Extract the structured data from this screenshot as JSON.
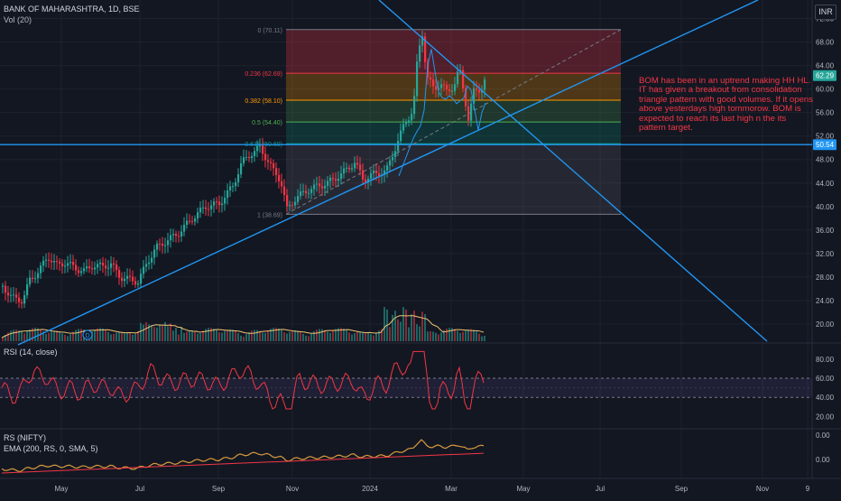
{
  "header": {
    "symbol_line": "BANK OF MAHARASHTRA, 1D, BSE",
    "volume_label": "Vol (20)",
    "currency": "INR"
  },
  "panes": {
    "rsi_label": "RSI (14, close)",
    "rs_label": "RS (NIFTY)",
    "ema_label": "EMA (200, RS, 0, SMA, 5)"
  },
  "annotation": "BOM has been in an uptrend making HH HL. IT has given a breakout from consolidation triangle pattern with good volumes. If it opens above yesterdays high tommorow. BOM is expected to reach its last high n the its pattern target.",
  "colors": {
    "background": "#131722",
    "up": "#26a69a",
    "down": "#f23645",
    "trendline": "#2196f3",
    "rsi": "#f23645",
    "rs": "#d69a3e",
    "ema": "#f23645",
    "annotation_text": "#f23645"
  },
  "chart_data": [
    {
      "type": "candlestick",
      "x_ticks": [
        "May",
        "Jul",
        "Sep",
        "Nov",
        "2024",
        "Mar",
        "May",
        "Jul",
        "Sep",
        "Nov",
        "9"
      ],
      "y_ticks": [
        20.0,
        24.0,
        28.0,
        32.0,
        36.0,
        40.0,
        44.0,
        48.0,
        52.0,
        56.0,
        60.0,
        64.0,
        68.0,
        72.0
      ],
      "ylim": [
        18,
        73
      ],
      "price_levels": [
        {
          "label": "62.29",
          "value": 62.29,
          "color": "#26a69a"
        },
        {
          "label": "50.54",
          "value": 50.54,
          "color": "#2196f3"
        }
      ],
      "fibonacci": [
        {
          "label": "0 (70.11)",
          "value": 70.11,
          "color": "#787b86"
        },
        {
          "label": "0.236 (62.69)",
          "value": 62.69,
          "color": "#f23645"
        },
        {
          "label": "0.382 (58.10)",
          "value": 58.1,
          "color": "#ff9800"
        },
        {
          "label": "0.5 (54.40)",
          "value": 54.4,
          "color": "#4caf50"
        },
        {
          "label": "0.618 (50.69)",
          "value": 50.69,
          "color": "#089981"
        },
        {
          "label": "1 (38.69)",
          "value": 38.69,
          "color": "#787b86"
        }
      ],
      "price_path": [
        {
          "t": 0,
          "close": 26.5
        },
        {
          "t": 10,
          "close": 24.5
        },
        {
          "t": 22,
          "close": 24.0
        },
        {
          "t": 30,
          "close": 27.5
        },
        {
          "t": 40,
          "close": 29.0
        },
        {
          "t": 50,
          "close": 31.5
        },
        {
          "t": 60,
          "close": 30.0
        },
        {
          "t": 70,
          "close": 30.5
        },
        {
          "t": 80,
          "close": 29.5
        },
        {
          "t": 90,
          "close": 29.0
        },
        {
          "t": 100,
          "close": 30.0
        },
        {
          "t": 110,
          "close": 29.8
        },
        {
          "t": 120,
          "close": 30.2
        },
        {
          "t": 130,
          "close": 28.0
        },
        {
          "t": 150,
          "close": 27.2
        },
        {
          "t": 160,
          "close": 30.5
        },
        {
          "t": 170,
          "close": 33.0
        },
        {
          "t": 180,
          "close": 34.0
        },
        {
          "t": 195,
          "close": 35.5
        },
        {
          "t": 210,
          "close": 38.0
        },
        {
          "t": 225,
          "close": 40.0
        },
        {
          "t": 240,
          "close": 40.5
        },
        {
          "t": 255,
          "close": 43.5
        },
        {
          "t": 265,
          "close": 47.5
        },
        {
          "t": 275,
          "close": 49.0
        },
        {
          "t": 285,
          "close": 50.0
        },
        {
          "t": 295,
          "close": 47.5
        },
        {
          "t": 300,
          "close": 46.0
        },
        {
          "t": 308,
          "close": 44.5
        },
        {
          "t": 315,
          "close": 39.5
        },
        {
          "t": 325,
          "close": 41.5
        },
        {
          "t": 340,
          "close": 43.0
        },
        {
          "t": 360,
          "close": 44.0
        },
        {
          "t": 375,
          "close": 45.5
        },
        {
          "t": 390,
          "close": 47.5
        },
        {
          "t": 400,
          "close": 44.5
        },
        {
          "t": 410,
          "close": 45.5
        },
        {
          "t": 425,
          "close": 46.0
        },
        {
          "t": 435,
          "close": 50.0
        },
        {
          "t": 445,
          "close": 54.0
        },
        {
          "t": 455,
          "close": 56.5
        },
        {
          "t": 460,
          "close": 66.0
        },
        {
          "t": 465,
          "close": 69.5
        },
        {
          "t": 470,
          "close": 62.0
        },
        {
          "t": 478,
          "close": 60.0
        },
        {
          "t": 485,
          "close": 61.0
        },
        {
          "t": 492,
          "close": 59.5
        },
        {
          "t": 500,
          "close": 60.5
        },
        {
          "t": 506,
          "close": 63.5
        },
        {
          "t": 512,
          "close": 58.5
        },
        {
          "t": 516,
          "close": 55.0
        },
        {
          "t": 522,
          "close": 59.5
        },
        {
          "t": 530,
          "close": 60.0
        },
        {
          "t": 536,
          "close": 62.3
        }
      ],
      "rsi_axis": [
        20.0,
        40.0,
        60.0,
        80.0
      ],
      "rsi_ylim": [
        10,
        95
      ],
      "rs_axis": [
        0.0
      ],
      "annotation": "BOM has been in an uptrend making HH HL. IT has given a breakout from consolidation triangle pattern with good volumes. If it opens above yesterdays high tommorow. BOM is expected to reach its last high n the its pattern target."
    }
  ]
}
